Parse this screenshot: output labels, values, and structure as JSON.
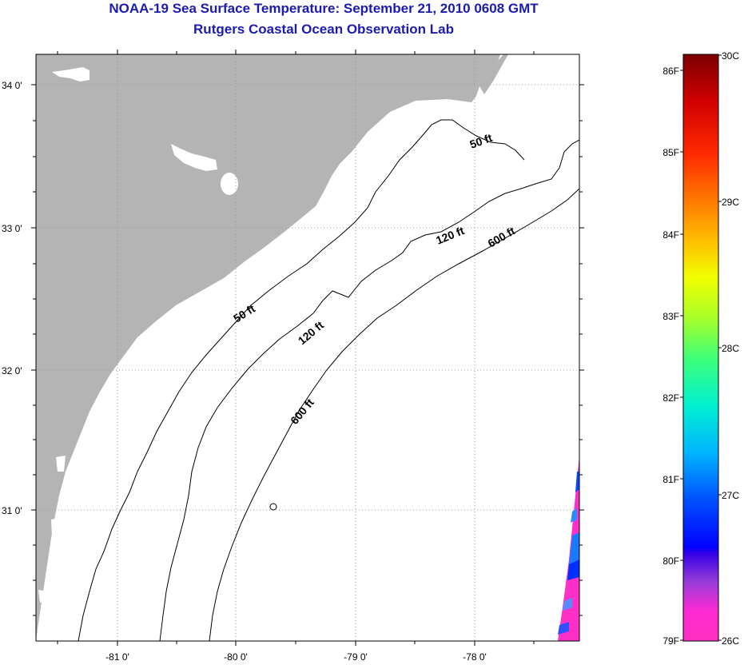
{
  "title": {
    "line1": "NOAA-19 Sea Surface Temperature:  September 21, 2010 0608 GMT",
    "line2": "Rutgers Coastal Ocean Observation Lab"
  },
  "map": {
    "lat_ticks": [
      "31 0'",
      "32 0'",
      "33 0'",
      "34 0'"
    ],
    "lon_ticks": [
      "-81 0'",
      "-80 0'",
      "-79 0'",
      "-78 0'"
    ],
    "land_color": "#b4b4b4",
    "contour_labels": [
      "50 ft",
      "50 ft",
      "120 ft",
      "120 ft",
      "600 ft",
      "600 ft"
    ]
  },
  "colorbar": {
    "fahrenheit_labels": [
      "86F",
      "85F",
      "84F",
      "83F",
      "82F",
      "81F",
      "80F",
      "79F"
    ],
    "celsius_labels": [
      "30C",
      "29C",
      "28C",
      "27C",
      "26C"
    ]
  }
}
